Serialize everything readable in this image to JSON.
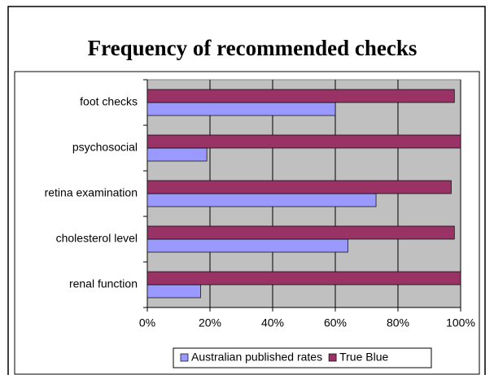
{
  "chart_data": {
    "type": "bar",
    "orientation": "horizontal",
    "title": "Frequency of recommended checks",
    "categories": [
      "foot checks",
      "psychosocial",
      "retina examination",
      "cholesterol level",
      "renal function"
    ],
    "series": [
      {
        "name": "Australian published rates",
        "color": "#9999ff",
        "values": [
          60,
          19,
          73,
          64,
          17
        ]
      },
      {
        "name": "True Blue",
        "color": "#993366",
        "values": [
          98,
          100,
          97,
          98,
          100
        ]
      }
    ],
    "xlim": [
      0,
      100
    ],
    "xticks": [
      {
        "value": 0,
        "label": "0%"
      },
      {
        "value": 20,
        "label": "20%"
      },
      {
        "value": 40,
        "label": "40%"
      },
      {
        "value": 60,
        "label": "60%"
      },
      {
        "value": 80,
        "label": "80%"
      },
      {
        "value": 100,
        "label": "100%"
      }
    ],
    "grid": true,
    "legend": "bottom"
  }
}
